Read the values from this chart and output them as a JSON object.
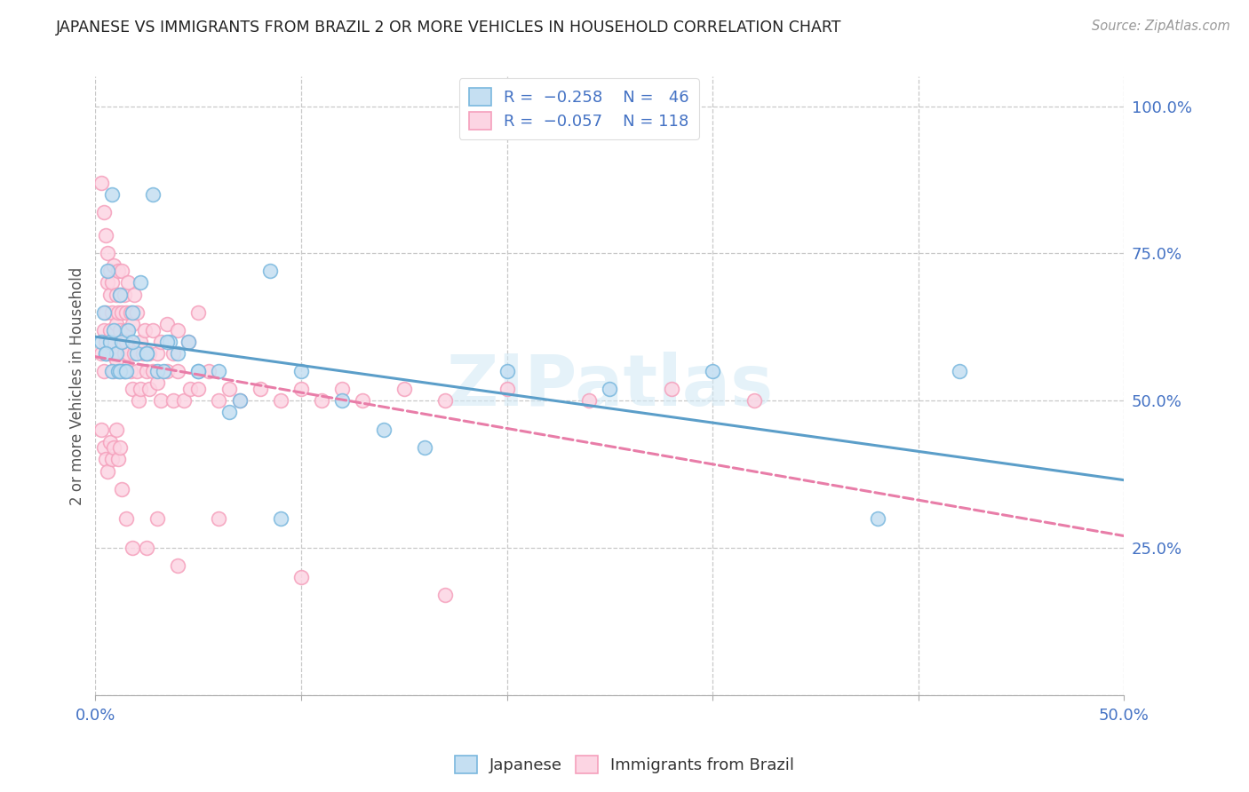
{
  "title": "JAPANESE VS IMMIGRANTS FROM BRAZIL 2 OR MORE VEHICLES IN HOUSEHOLD CORRELATION CHART",
  "source": "Source: ZipAtlas.com",
  "ylabel": "2 or more Vehicles in Household",
  "xlim": [
    0.0,
    0.5
  ],
  "ylim": [
    0.0,
    1.05
  ],
  "color_japanese": "#7ab8de",
  "color_brazil": "#f5a0bc",
  "color_japanese_fill": "#c5dff2",
  "color_brazil_fill": "#fcd5e3",
  "color_japanese_line": "#5b9ec9",
  "color_brazil_line": "#e87da8",
  "watermark": "ZIPatlas",
  "japanese_x": [
    0.003,
    0.004,
    0.005,
    0.006,
    0.007,
    0.008,
    0.009,
    0.01,
    0.011,
    0.012,
    0.013,
    0.014,
    0.016,
    0.018,
    0.02,
    0.022,
    0.025,
    0.028,
    0.03,
    0.033,
    0.036,
    0.04,
    0.045,
    0.05,
    0.06,
    0.07,
    0.085,
    0.1,
    0.12,
    0.14,
    0.16,
    0.2,
    0.25,
    0.3,
    0.38,
    0.42,
    0.005,
    0.008,
    0.012,
    0.015,
    0.018,
    0.025,
    0.035,
    0.05,
    0.065,
    0.09
  ],
  "japanese_y": [
    0.6,
    0.65,
    0.58,
    0.72,
    0.6,
    0.55,
    0.62,
    0.58,
    0.55,
    0.68,
    0.6,
    0.55,
    0.62,
    0.65,
    0.58,
    0.7,
    0.58,
    0.85,
    0.55,
    0.55,
    0.6,
    0.58,
    0.6,
    0.55,
    0.55,
    0.5,
    0.72,
    0.55,
    0.5,
    0.45,
    0.42,
    0.55,
    0.52,
    0.55,
    0.3,
    0.55,
    0.58,
    0.85,
    0.55,
    0.55,
    0.6,
    0.58,
    0.6,
    0.55,
    0.48,
    0.3
  ],
  "brazil_x": [
    0.003,
    0.004,
    0.004,
    0.005,
    0.005,
    0.006,
    0.006,
    0.007,
    0.007,
    0.008,
    0.008,
    0.009,
    0.009,
    0.01,
    0.01,
    0.011,
    0.011,
    0.012,
    0.012,
    0.013,
    0.013,
    0.014,
    0.014,
    0.015,
    0.015,
    0.016,
    0.017,
    0.018,
    0.019,
    0.02,
    0.021,
    0.022,
    0.023,
    0.025,
    0.026,
    0.028,
    0.03,
    0.032,
    0.035,
    0.038,
    0.04,
    0.043,
    0.046,
    0.05,
    0.055,
    0.06,
    0.065,
    0.07,
    0.08,
    0.09,
    0.1,
    0.11,
    0.12,
    0.13,
    0.15,
    0.17,
    0.2,
    0.24,
    0.28,
    0.32,
    0.003,
    0.004,
    0.005,
    0.006,
    0.007,
    0.008,
    0.009,
    0.01,
    0.011,
    0.012,
    0.013,
    0.014,
    0.015,
    0.016,
    0.017,
    0.018,
    0.019,
    0.02,
    0.022,
    0.024,
    0.026,
    0.028,
    0.03,
    0.032,
    0.035,
    0.038,
    0.04,
    0.045,
    0.05,
    0.003,
    0.004,
    0.005,
    0.006,
    0.007,
    0.008,
    0.009,
    0.01,
    0.011,
    0.012,
    0.013,
    0.015,
    0.018,
    0.025,
    0.03,
    0.04,
    0.06,
    0.1,
    0.17
  ],
  "brazil_y": [
    0.58,
    0.55,
    0.62,
    0.6,
    0.65,
    0.58,
    0.7,
    0.62,
    0.68,
    0.58,
    0.65,
    0.6,
    0.55,
    0.63,
    0.57,
    0.65,
    0.58,
    0.62,
    0.55,
    0.6,
    0.65,
    0.58,
    0.55,
    0.62,
    0.6,
    0.58,
    0.55,
    0.52,
    0.58,
    0.55,
    0.5,
    0.52,
    0.58,
    0.55,
    0.52,
    0.55,
    0.53,
    0.5,
    0.55,
    0.5,
    0.55,
    0.5,
    0.52,
    0.52,
    0.55,
    0.5,
    0.52,
    0.5,
    0.52,
    0.5,
    0.52,
    0.5,
    0.52,
    0.5,
    0.52,
    0.5,
    0.52,
    0.5,
    0.52,
    0.5,
    0.87,
    0.82,
    0.78,
    0.75,
    0.72,
    0.7,
    0.73,
    0.68,
    0.72,
    0.68,
    0.72,
    0.68,
    0.65,
    0.7,
    0.65,
    0.63,
    0.68,
    0.65,
    0.6,
    0.62,
    0.58,
    0.62,
    0.58,
    0.6,
    0.63,
    0.58,
    0.62,
    0.6,
    0.65,
    0.45,
    0.42,
    0.4,
    0.38,
    0.43,
    0.4,
    0.42,
    0.45,
    0.4,
    0.42,
    0.35,
    0.3,
    0.25,
    0.25,
    0.3,
    0.22,
    0.3,
    0.2,
    0.17
  ]
}
